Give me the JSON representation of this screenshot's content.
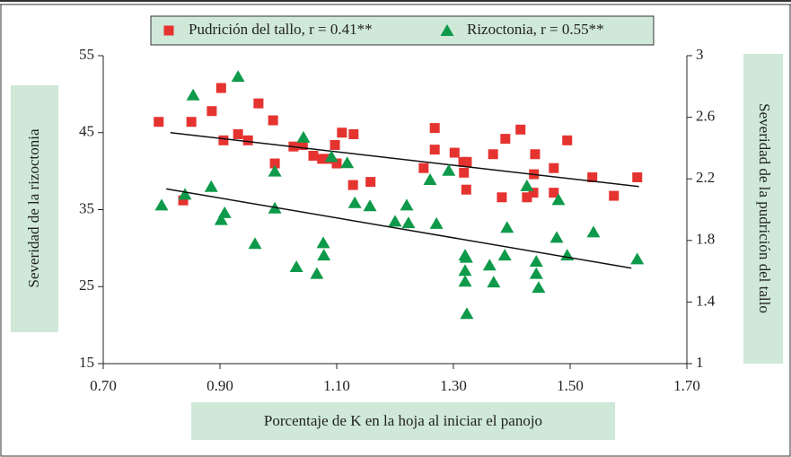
{
  "chart_data": {
    "type": "scatter",
    "xlabel": "Porcentaje de K en la hoja al iniciar el panojo",
    "ylabel": "Severidad de la rizoctonia",
    "y2label": "Severidad de  la pudrición del tallo",
    "xlim": [
      0.7,
      1.7
    ],
    "xticks": [
      {
        "value": 0.7,
        "label": "0.70"
      },
      {
        "value": 0.9,
        "label": "0.90"
      },
      {
        "value": 1.1,
        "label": "1.10"
      },
      {
        "value": 1.3,
        "label": "1.30"
      },
      {
        "value": 1.5,
        "label": "1.50"
      },
      {
        "value": 1.7,
        "label": "1.70"
      }
    ],
    "ylim": [
      15,
      55
    ],
    "yticks": [
      15,
      25,
      35,
      45,
      55
    ],
    "y2lim": [
      1,
      3
    ],
    "y2ticks": [
      1,
      1.4,
      1.8,
      2.2,
      2.6,
      3
    ],
    "series": [
      {
        "name": "Pudrición del tallo, r = 0.41**",
        "color": "#e53330",
        "marker": "square",
        "axis": "y2",
        "x": [
          0.795,
          0.837,
          0.851,
          0.886,
          0.902,
          0.906,
          0.931,
          0.948,
          0.966,
          0.991,
          0.994,
          1.026,
          1.042,
          1.06,
          1.075,
          1.085,
          1.097,
          1.1,
          1.109,
          1.128,
          1.129,
          1.158,
          1.249,
          1.268,
          1.268,
          1.302,
          1.317,
          1.318,
          1.322,
          1.323,
          1.368,
          1.383,
          1.389,
          1.415,
          1.426,
          1.437,
          1.438,
          1.44,
          1.472,
          1.472,
          1.495,
          1.538,
          1.575,
          1.615
        ],
        "values": [
          2.57,
          2.06,
          2.57,
          2.64,
          2.79,
          2.45,
          2.49,
          2.45,
          2.69,
          2.58,
          2.3,
          2.41,
          2.42,
          2.35,
          2.33,
          2.33,
          2.42,
          2.3,
          2.5,
          2.16,
          2.49,
          2.18,
          2.27,
          2.53,
          2.39,
          2.37,
          2.31,
          2.24,
          2.13,
          2.31,
          2.36,
          2.08,
          2.46,
          2.52,
          2.08,
          2.11,
          2.23,
          2.36,
          2.27,
          2.11,
          2.45,
          2.21,
          2.09,
          2.21
        ],
        "trend": {
          "x": [
            0.815,
            1.618
          ],
          "values": [
            2.5,
            2.15
          ]
        }
      },
      {
        "name": "Rizoctonia, r = 0.55**",
        "color": "#0e9a4a",
        "marker": "triangle",
        "x": [
          0.8,
          0.84,
          0.854,
          0.885,
          0.902,
          0.908,
          0.931,
          0.96,
          0.994,
          0.994,
          1.031,
          1.043,
          1.066,
          1.077,
          1.078,
          1.091,
          1.118,
          1.131,
          1.157,
          1.2,
          1.22,
          1.223,
          1.26,
          1.271,
          1.292,
          1.32,
          1.32,
          1.32,
          1.322,
          1.323,
          1.362,
          1.369,
          1.388,
          1.392,
          1.426,
          1.442,
          1.442,
          1.446,
          1.477,
          1.48,
          1.495,
          1.54,
          1.615
        ],
        "values": [
          35.6,
          37,
          49.9,
          38,
          33.7,
          34.6,
          52.3,
          30.6,
          40,
          35.2,
          27.6,
          44.4,
          26.7,
          30.7,
          29.1,
          41.9,
          41.1,
          35.9,
          35.5,
          33.5,
          35.6,
          33.3,
          38.9,
          33.2,
          40.1,
          29.1,
          27.1,
          25.7,
          28.8,
          21.5,
          27.8,
          25.6,
          29.1,
          32.7,
          38.1,
          28.3,
          26.7,
          24.9,
          31.4,
          36.3,
          29.1,
          32.1,
          28.6
        ],
        "trend": {
          "x": [
            0.808,
            1.605
          ],
          "values": [
            37.7,
            27.4
          ]
        }
      }
    ]
  }
}
